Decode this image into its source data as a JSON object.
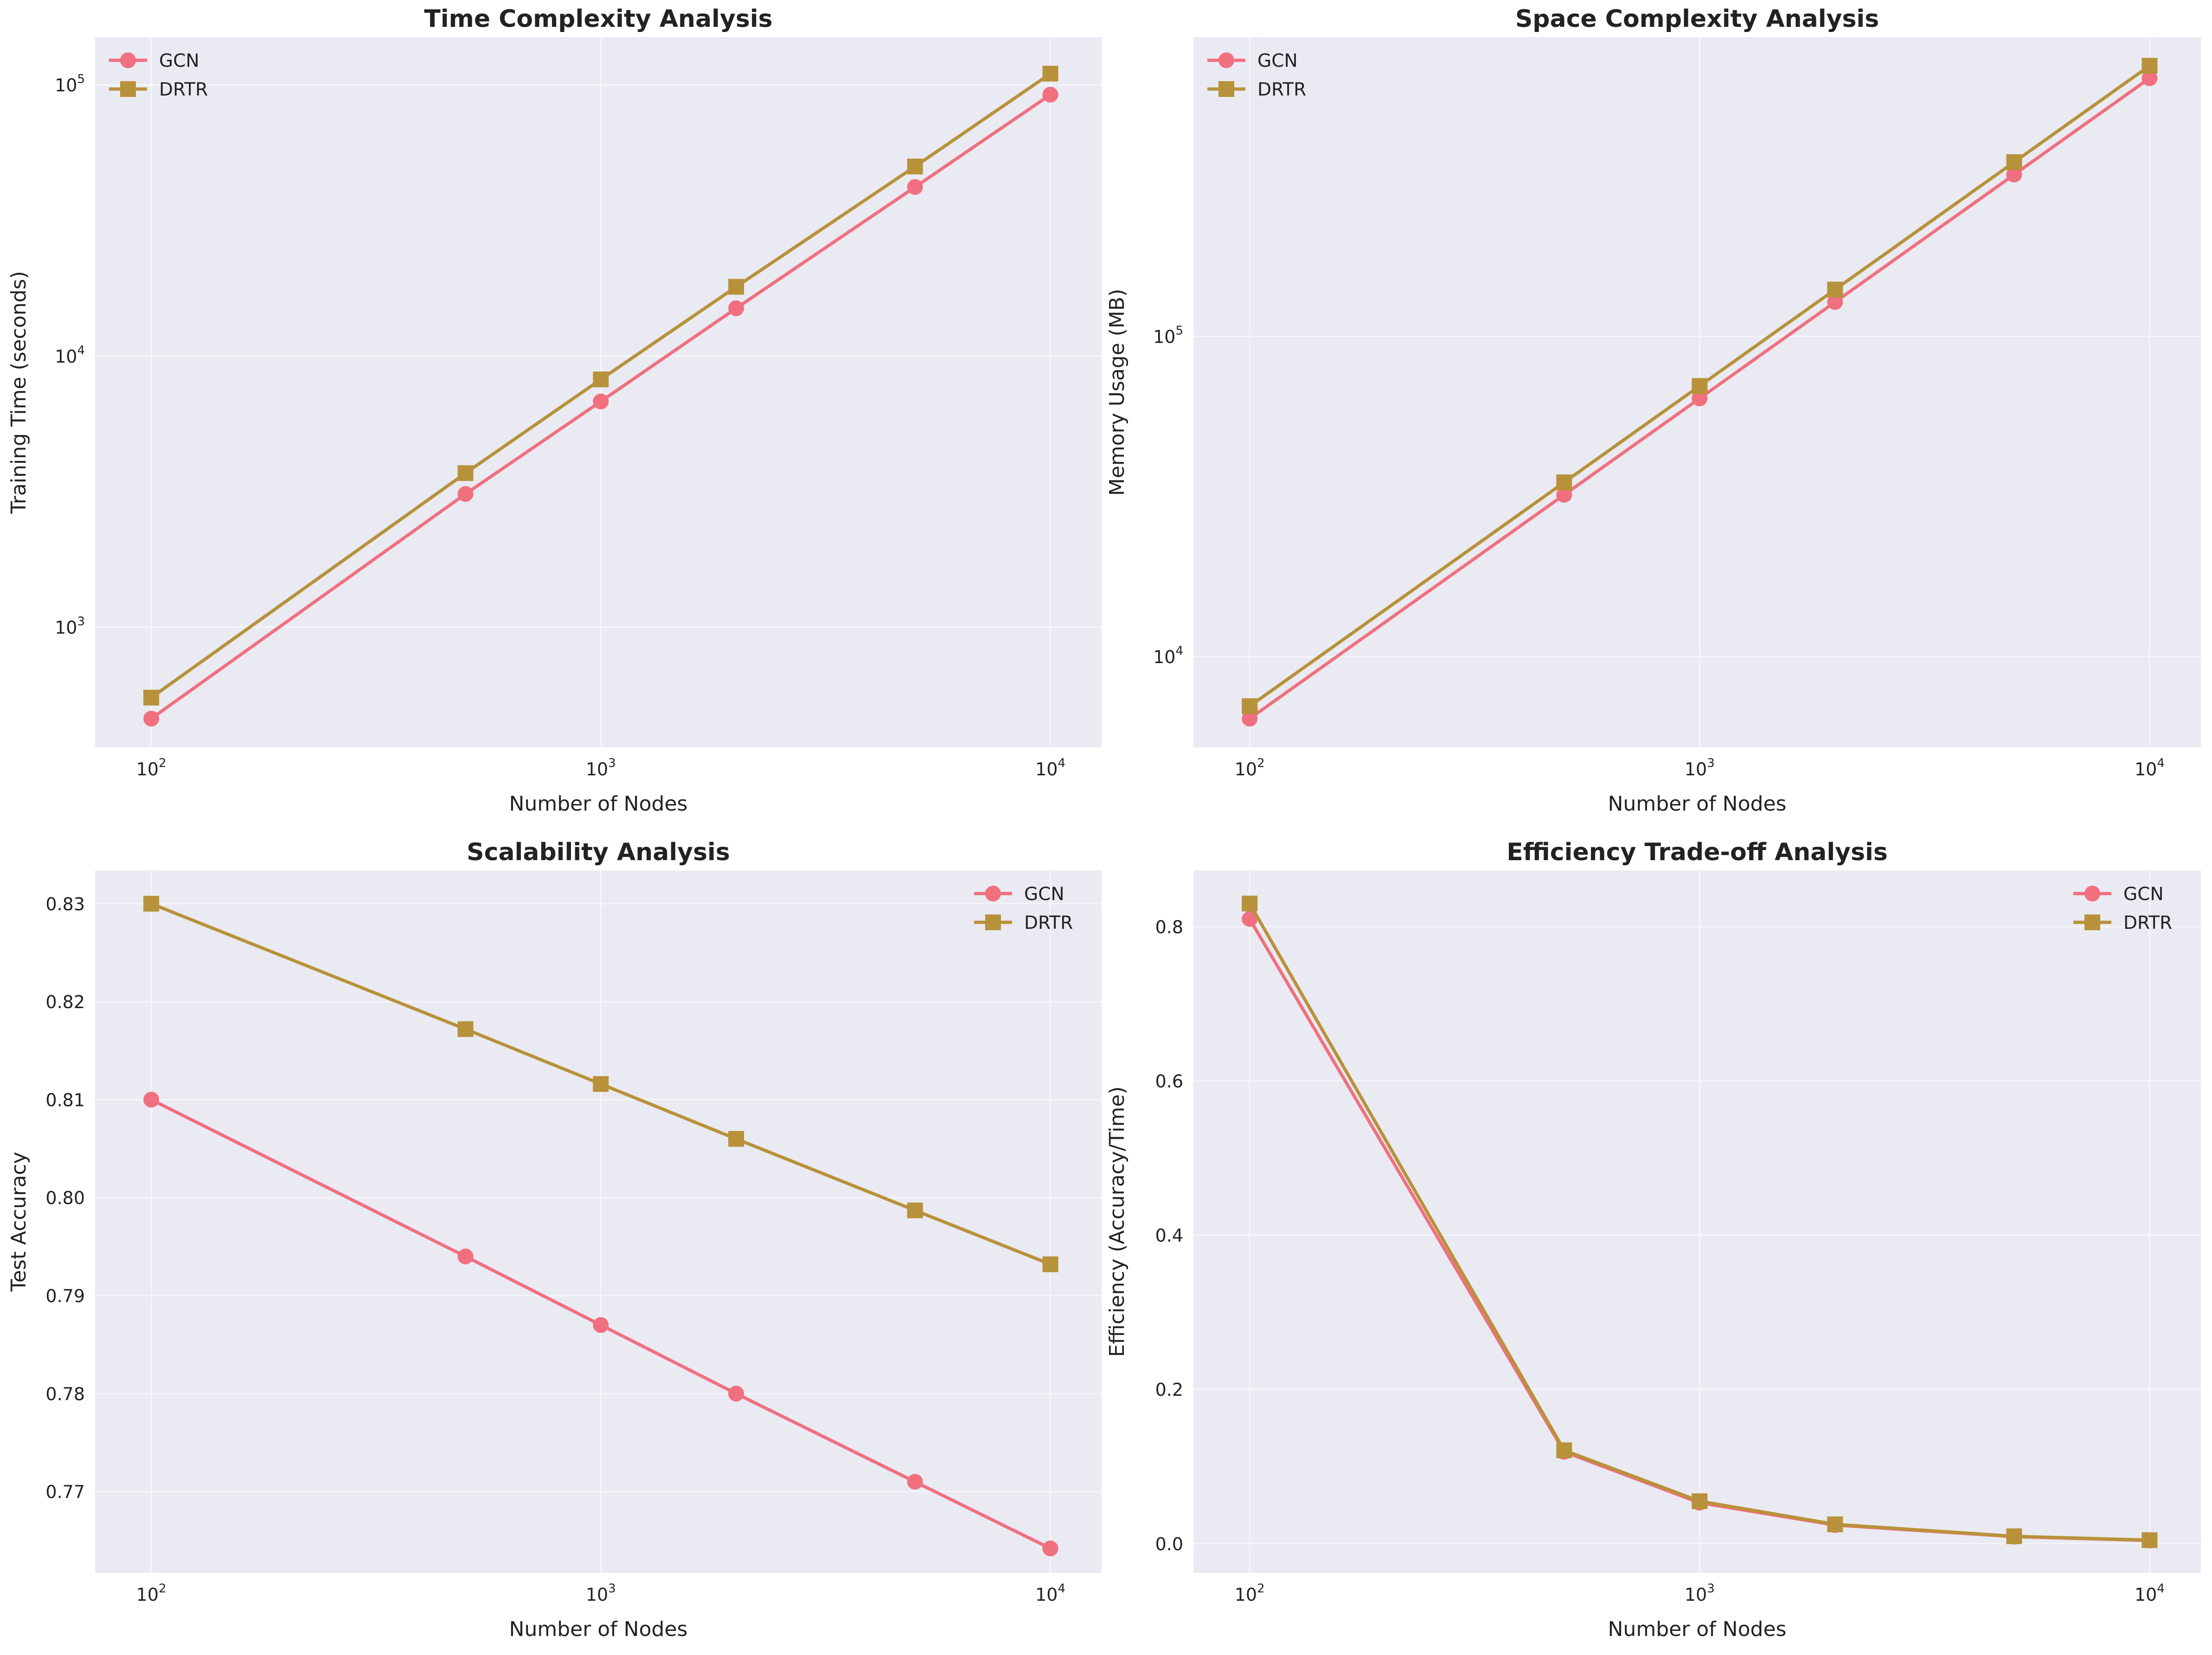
{
  "chart_data": [
    {
      "type": "line",
      "title": "Time Complexity Analysis",
      "xlabel": "Number of Nodes",
      "ylabel": "Training Time (seconds)",
      "xscale": "log",
      "yscale": "log",
      "xlim": [
        75,
        13000
      ],
      "ylim": [
        360,
        150000
      ],
      "xticks": [
        100,
        1000,
        10000
      ],
      "xtick_labels": [
        {
          "base": "10",
          "exp": "2"
        },
        {
          "base": "10",
          "exp": "3"
        },
        {
          "base": "10",
          "exp": "4"
        }
      ],
      "yticks": [
        1000,
        10000,
        100000
      ],
      "ytick_labels": [
        {
          "base": "10",
          "exp": "3"
        },
        {
          "base": "10",
          "exp": "4"
        },
        {
          "base": "10",
          "exp": "5"
        }
      ],
      "legend": "upper-left",
      "x": [
        100,
        500,
        1000,
        2000,
        5000,
        10000
      ],
      "series": [
        {
          "name": "GCN",
          "color": "#f0707f",
          "marker": "circle",
          "values": [
            460,
            3100,
            6800,
            15000,
            42000,
            92000
          ]
        },
        {
          "name": "DRTR",
          "color": "#b8923a",
          "marker": "square",
          "values": [
            550,
            3700,
            8200,
            18000,
            50000,
            110000
          ]
        }
      ]
    },
    {
      "type": "line",
      "title": "Space Complexity Analysis",
      "xlabel": "Number of Nodes",
      "ylabel": "Memory Usage (MB)",
      "xscale": "log",
      "yscale": "log",
      "xlim": [
        75,
        13000
      ],
      "ylim": [
        5200,
        860000
      ],
      "xticks": [
        100,
        1000,
        10000
      ],
      "xtick_labels": [
        {
          "base": "10",
          "exp": "2"
        },
        {
          "base": "10",
          "exp": "3"
        },
        {
          "base": "10",
          "exp": "4"
        }
      ],
      "yticks": [
        10000,
        100000
      ],
      "ytick_labels": [
        {
          "base": "10",
          "exp": "4"
        },
        {
          "base": "10",
          "exp": "5"
        }
      ],
      "legend": "upper-left",
      "x": [
        100,
        500,
        1000,
        2000,
        5000,
        10000
      ],
      "series": [
        {
          "name": "GCN",
          "color": "#f0707f",
          "marker": "circle",
          "values": [
            6400,
            32000,
            64000,
            128000,
            320000,
            640000
          ]
        },
        {
          "name": "DRTR",
          "color": "#b8923a",
          "marker": "square",
          "values": [
            7000,
            35000,
            70000,
            140000,
            350000,
            700000
          ]
        }
      ]
    },
    {
      "type": "line",
      "title": "Scalability Analysis",
      "xlabel": "Number of Nodes",
      "ylabel": "Test Accuracy",
      "xscale": "log",
      "yscale": "linear",
      "xlim": [
        75,
        13000
      ],
      "ylim": [
        0.7617,
        0.8334
      ],
      "xticks": [
        100,
        1000,
        10000
      ],
      "xtick_labels": [
        {
          "base": "10",
          "exp": "2"
        },
        {
          "base": "10",
          "exp": "3"
        },
        {
          "base": "10",
          "exp": "4"
        }
      ],
      "yticks": [
        0.77,
        0.78,
        0.79,
        0.8,
        0.81,
        0.82,
        0.83
      ],
      "ytick_labels": [
        "0.77",
        "0.78",
        "0.79",
        "0.80",
        "0.81",
        "0.82",
        "0.83"
      ],
      "legend": "upper-right",
      "x": [
        100,
        500,
        1000,
        2000,
        5000,
        10000
      ],
      "series": [
        {
          "name": "GCN",
          "color": "#f0707f",
          "marker": "circle",
          "values": [
            0.81,
            0.794,
            0.787,
            0.78,
            0.771,
            0.7642
          ]
        },
        {
          "name": "DRTR",
          "color": "#b8923a",
          "marker": "square",
          "values": [
            0.83,
            0.8172,
            0.8116,
            0.806,
            0.7987,
            0.7932
          ]
        }
      ]
    },
    {
      "type": "line",
      "title": "Efficiency Trade-off Analysis",
      "xlabel": "Number of Nodes",
      "ylabel": "Efficiency (Accuracy/Time)",
      "xscale": "log",
      "yscale": "linear",
      "xlim": [
        75,
        13000
      ],
      "ylim": [
        -0.038,
        0.873
      ],
      "xticks": [
        100,
        1000,
        10000
      ],
      "xtick_labels": [
        {
          "base": "10",
          "exp": "2"
        },
        {
          "base": "10",
          "exp": "3"
        },
        {
          "base": "10",
          "exp": "4"
        }
      ],
      "yticks": [
        0,
        0.2,
        0.4,
        0.6,
        0.8
      ],
      "ytick_labels": [
        "0.0",
        "0.2",
        "0.4",
        "0.6",
        "0.8"
      ],
      "legend": "upper-right",
      "x": [
        100,
        500,
        1000,
        2000,
        5000,
        10000
      ],
      "series": [
        {
          "name": "GCN",
          "color": "#f0707f",
          "marker": "circle",
          "values": [
            0.81,
            0.119,
            0.053,
            0.024,
            0.009,
            0.004
          ]
        },
        {
          "name": "DRTR",
          "color": "#b8923a",
          "marker": "square",
          "values": [
            0.83,
            0.121,
            0.055,
            0.025,
            0.0095,
            0.0045
          ]
        }
      ]
    }
  ]
}
